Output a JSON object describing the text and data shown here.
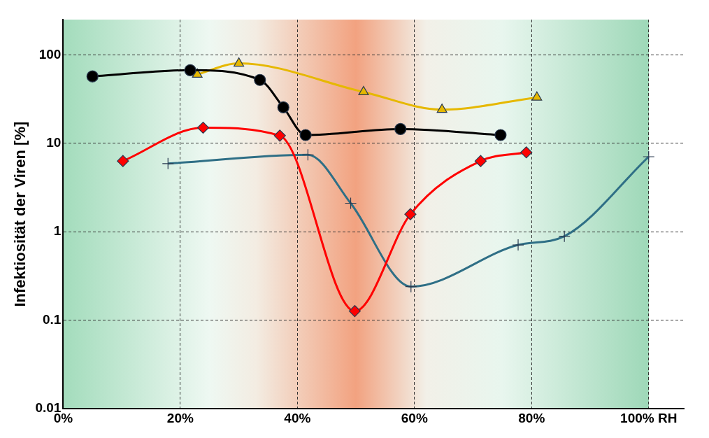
{
  "chart_data": {
    "type": "line",
    "ylabel": "Infektiosität der Viren [%]",
    "log": "y",
    "grid": true,
    "line_style": "solid",
    "legend": false,
    "xlim": [
      0,
      106
    ],
    "xticks": [
      {
        "value": 0,
        "label": "0%"
      },
      {
        "value": 20,
        "label": "20%"
      },
      {
        "value": 40,
        "label": "40%"
      },
      {
        "value": 60,
        "label": "60%"
      },
      {
        "value": 80,
        "label": "80%"
      },
      {
        "value": 100,
        "label": "100% RH"
      }
    ],
    "ylim": [
      0.01,
      250
    ],
    "yticks": [
      0.01,
      0.1,
      1,
      10,
      100
    ],
    "series": [
      {
        "color": "#000000",
        "marker": "circle",
        "x": [
          5,
          21.7,
          33.6,
          37.6,
          41.4,
          57.6,
          74.7
        ],
        "values": [
          57,
          67,
          52,
          25.5,
          12.4,
          14.5,
          12.4
        ]
      },
      {
        "color": "#e6b800",
        "marker": "triangle",
        "x": [
          22.9,
          30,
          51.3,
          64.7,
          80.9
        ],
        "values": [
          60,
          80,
          38,
          24,
          33
        ]
      },
      {
        "color": "#ff0000",
        "marker": "diamond",
        "x": [
          10.2,
          23.9,
          37,
          49.8,
          59.3,
          71.3,
          79.1
        ],
        "values": [
          6.3,
          15,
          12.2,
          0.127,
          1.58,
          6.3,
          7.9
        ]
      },
      {
        "color": "#2f6f86",
        "marker": "cross",
        "x": [
          17.9,
          41.8,
          49.1,
          59.4,
          77.7,
          85.6,
          100
        ],
        "values": [
          5.9,
          7.4,
          2.1,
          0.24,
          0.71,
          0.89,
          7.05
        ]
      }
    ]
  }
}
